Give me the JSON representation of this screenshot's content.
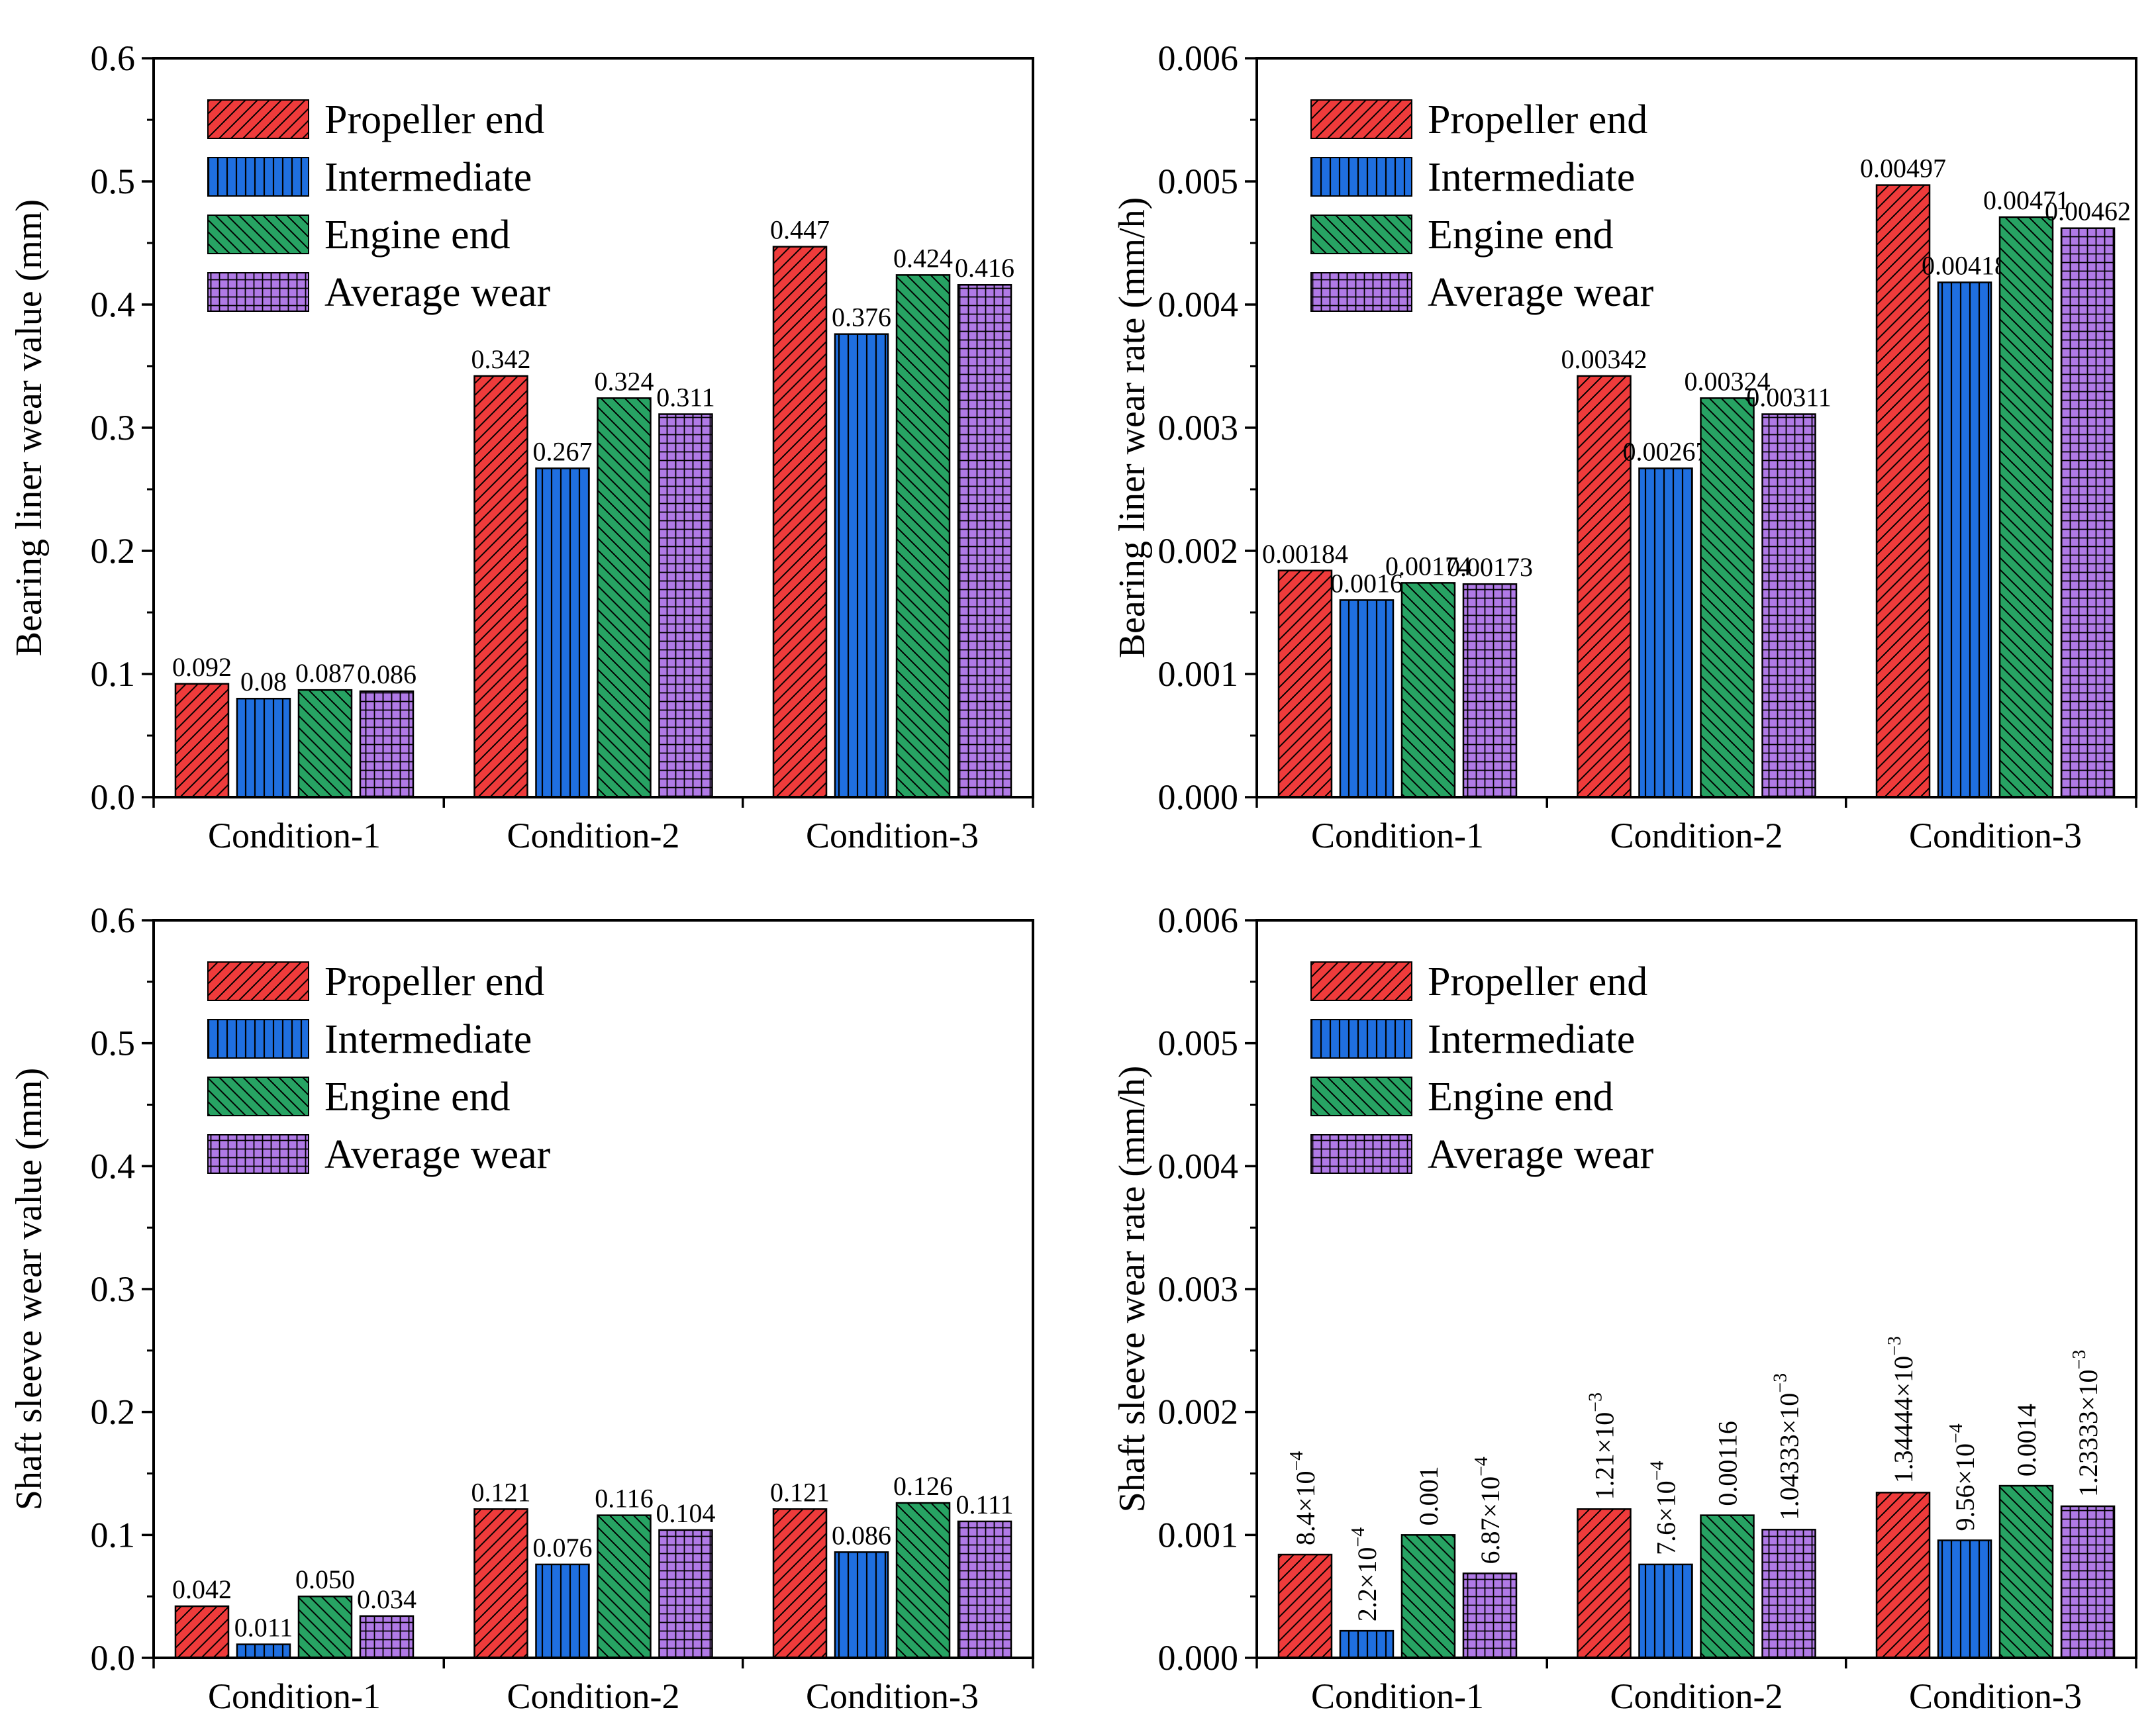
{
  "figure": {
    "panel_count": 4
  },
  "chart_data": [
    {
      "id": "liner-wear-value",
      "type": "bar",
      "title": "",
      "xlabel": "",
      "ylabel": "Bearing liner wear value (mm)",
      "ylim": [
        0,
        0.6
      ],
      "yticks": [
        "0.0",
        "0.1",
        "0.2",
        "0.3",
        "0.4",
        "0.5",
        "0.6"
      ],
      "ytick_values": [
        0,
        0.1,
        0.2,
        0.3,
        0.4,
        0.5,
        0.6
      ],
      "categories": [
        "Condition-1",
        "Condition-2",
        "Condition-3"
      ],
      "legend_position": "top-left",
      "series": [
        {
          "name": "Propeller end",
          "color": "#ef3b3b",
          "pattern": "diag-right",
          "values": [
            0.092,
            0.342,
            0.447
          ],
          "labels": [
            "0.092",
            "0.342",
            "0.447"
          ]
        },
        {
          "name": "Intermediate",
          "color": "#1f6fe0",
          "pattern": "vertical",
          "values": [
            0.08,
            0.267,
            0.376
          ],
          "labels": [
            "0.08",
            "0.267",
            "0.376"
          ]
        },
        {
          "name": "Engine end",
          "color": "#27a363",
          "pattern": "diag-left",
          "values": [
            0.087,
            0.324,
            0.424
          ],
          "labels": [
            "0.087",
            "0.324",
            "0.424"
          ]
        },
        {
          "name": "Average wear",
          "color": "#b07ae6",
          "pattern": "grid",
          "values": [
            0.086,
            0.311,
            0.416
          ],
          "labels": [
            "0.086",
            "0.311",
            "0.416"
          ]
        }
      ]
    },
    {
      "id": "liner-wear-rate",
      "type": "bar",
      "title": "",
      "xlabel": "",
      "ylabel": "Bearing liner wear rate (mm/h)",
      "ylim": [
        0,
        0.006
      ],
      "yticks": [
        "0.000",
        "0.001",
        "0.002",
        "0.003",
        "0.004",
        "0.005",
        "0.006"
      ],
      "ytick_values": [
        0,
        0.001,
        0.002,
        0.003,
        0.004,
        0.005,
        0.006
      ],
      "categories": [
        "Condition-1",
        "Condition-2",
        "Condition-3"
      ],
      "legend_position": "top-left",
      "series": [
        {
          "name": "Propeller end",
          "color": "#ef3b3b",
          "pattern": "diag-right",
          "values": [
            0.00184,
            0.00342,
            0.00497
          ],
          "labels": [
            "0.00184",
            "0.00342",
            "0.00497"
          ]
        },
        {
          "name": "Intermediate",
          "color": "#1f6fe0",
          "pattern": "vertical",
          "values": [
            0.0016,
            0.00267,
            0.00418
          ],
          "labels": [
            "0.0016",
            "0.00267",
            "0.00418"
          ]
        },
        {
          "name": "Engine end",
          "color": "#27a363",
          "pattern": "diag-left",
          "values": [
            0.00174,
            0.00324,
            0.00471
          ],
          "labels": [
            "0.00174",
            "0.00324",
            "0.00471"
          ]
        },
        {
          "name": "Average wear",
          "color": "#b07ae6",
          "pattern": "grid",
          "values": [
            0.00173,
            0.00311,
            0.00462
          ],
          "labels": [
            "0.00173",
            "0.00311",
            "0.00462"
          ]
        }
      ]
    },
    {
      "id": "sleeve-wear-value",
      "type": "bar",
      "title": "",
      "xlabel": "",
      "ylabel": "Shaft sleeve wear value (mm)",
      "ylim": [
        0,
        0.6
      ],
      "yticks": [
        "0.0",
        "0.1",
        "0.2",
        "0.3",
        "0.4",
        "0.5",
        "0.6"
      ],
      "ytick_values": [
        0,
        0.1,
        0.2,
        0.3,
        0.4,
        0.5,
        0.6
      ],
      "categories": [
        "Condition-1",
        "Condition-2",
        "Condition-3"
      ],
      "legend_position": "top-left",
      "series": [
        {
          "name": "Propeller end",
          "color": "#ef3b3b",
          "pattern": "diag-right",
          "values": [
            0.042,
            0.121,
            0.121
          ],
          "labels": [
            "0.042",
            "0.121",
            "0.121"
          ]
        },
        {
          "name": "Intermediate",
          "color": "#1f6fe0",
          "pattern": "vertical",
          "values": [
            0.011,
            0.076,
            0.086
          ],
          "labels": [
            "0.011",
            "0.076",
            "0.086"
          ]
        },
        {
          "name": "Engine end",
          "color": "#27a363",
          "pattern": "diag-left",
          "values": [
            0.05,
            0.116,
            0.126
          ],
          "labels": [
            "0.050",
            "0.116",
            "0.126"
          ]
        },
        {
          "name": "Average wear",
          "color": "#b07ae6",
          "pattern": "grid",
          "values": [
            0.034,
            0.104,
            0.111
          ],
          "labels": [
            "0.034",
            "0.104",
            "0.111"
          ]
        }
      ]
    },
    {
      "id": "sleeve-wear-rate",
      "type": "bar",
      "title": "",
      "xlabel": "",
      "ylabel": "Shaft sleeve wear rate (mm/h)",
      "ylim": [
        0,
        0.006
      ],
      "yticks": [
        "0.000",
        "0.001",
        "0.002",
        "0.003",
        "0.004",
        "0.005",
        "0.006"
      ],
      "ytick_values": [
        0,
        0.001,
        0.002,
        0.003,
        0.004,
        0.005,
        0.006
      ],
      "categories": [
        "Condition-1",
        "Condition-2",
        "Condition-3"
      ],
      "legend_position": "top-left",
      "rotated_labels": true,
      "series": [
        {
          "name": "Propeller end",
          "color": "#ef3b3b",
          "pattern": "diag-right",
          "values": [
            0.00084,
            0.00121,
            0.00134444
          ],
          "labels": [
            {
              "base": "8.4×10",
              "exp": "−4"
            },
            {
              "base": "1.21×10",
              "exp": "−3"
            },
            {
              "base": "1.34444×10",
              "exp": "−3"
            }
          ]
        },
        {
          "name": "Intermediate",
          "color": "#1f6fe0",
          "pattern": "vertical",
          "values": [
            0.00022,
            0.00076,
            0.000956
          ],
          "labels": [
            {
              "base": "2.2×10",
              "exp": "−4"
            },
            {
              "base": "7.6×10",
              "exp": "−4"
            },
            {
              "base": "9.56×10",
              "exp": "−4"
            }
          ]
        },
        {
          "name": "Engine end",
          "color": "#27a363",
          "pattern": "diag-left",
          "values": [
            0.001,
            0.00116,
            0.0014
          ],
          "labels": [
            {
              "base": "0.001",
              "exp": ""
            },
            {
              "base": "0.00116",
              "exp": ""
            },
            {
              "base": "0.0014",
              "exp": ""
            }
          ]
        },
        {
          "name": "Average wear",
          "color": "#b07ae6",
          "pattern": "grid",
          "values": [
            0.000687,
            0.00104333,
            0.00123333
          ],
          "labels": [
            {
              "base": "6.87×10",
              "exp": "−4"
            },
            {
              "base": "1.04333×10",
              "exp": "−3"
            },
            {
              "base": "1.23333×10",
              "exp": "−3"
            }
          ]
        }
      ]
    }
  ]
}
